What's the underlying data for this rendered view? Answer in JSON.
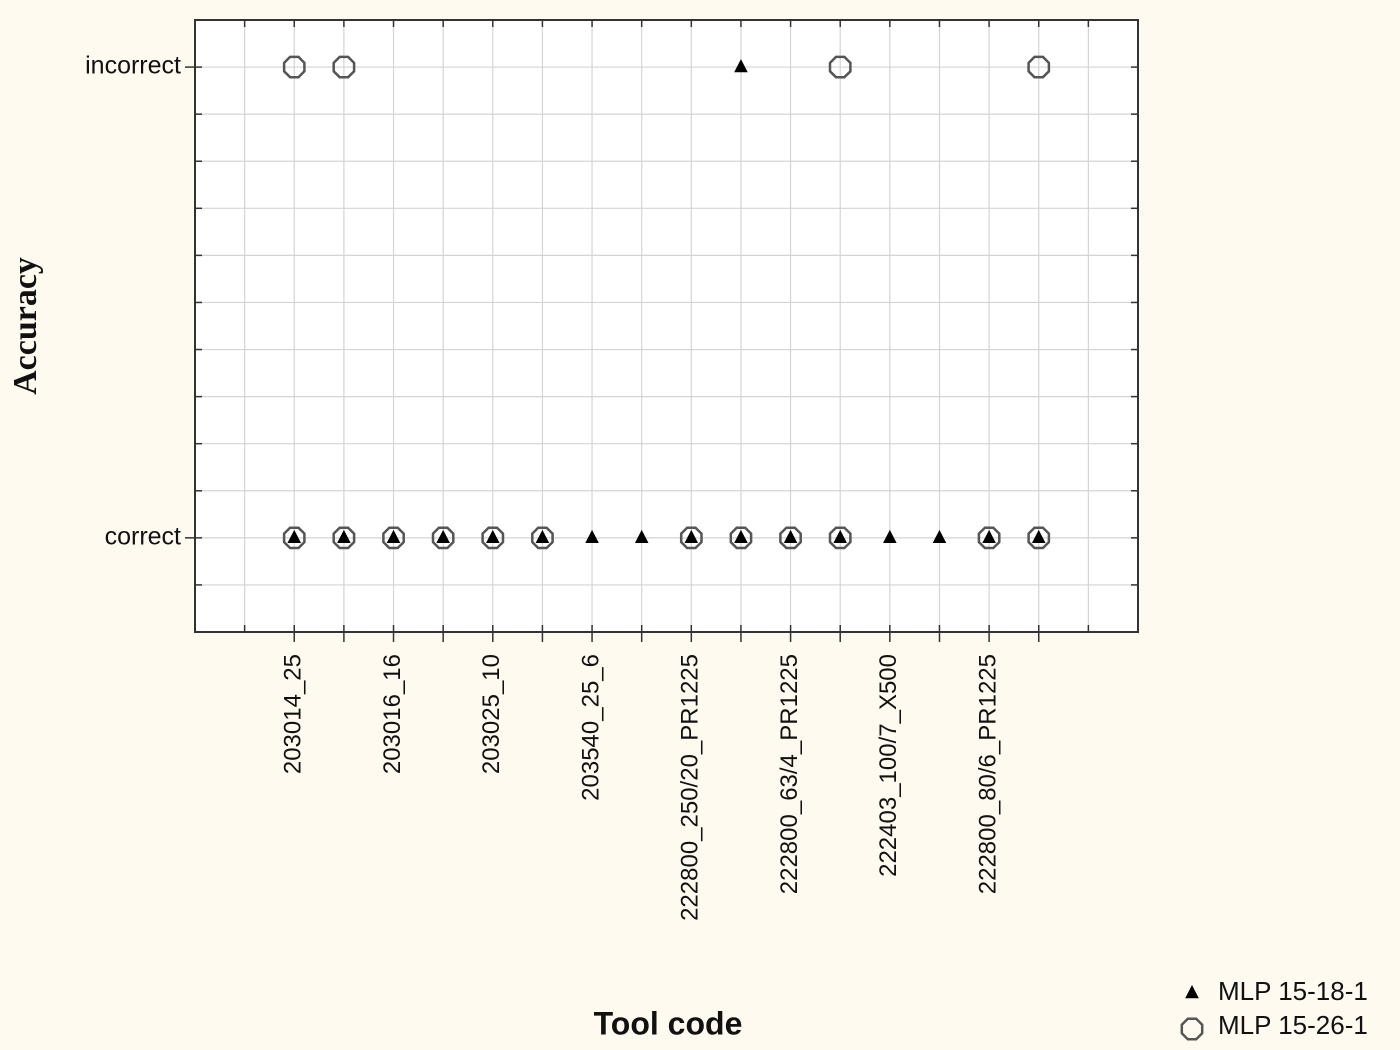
{
  "chart_data": {
    "type": "scatter",
    "x_title": "Tool code",
    "y_title": "Accuracy",
    "categories": [
      "203014_25",
      null,
      "203016_16",
      null,
      "203025_10",
      null,
      "203540_25_6",
      null,
      "222800_250/20_PR1225",
      null,
      "222800_63/4_PR1225",
      null,
      "222403_100/7_X500",
      null,
      "222800_80/6_PR1225",
      null
    ],
    "y_categories": [
      "correct",
      "incorrect"
    ],
    "series": [
      {
        "name": "MLP 15-18-1",
        "marker": "triangle",
        "color": "#000000",
        "values": [
          [
            "correct"
          ],
          [
            "correct"
          ],
          [
            "correct"
          ],
          [
            "correct"
          ],
          [
            "correct"
          ],
          [
            "correct"
          ],
          [
            "correct"
          ],
          [
            "correct"
          ],
          [
            "correct"
          ],
          [
            "correct",
            "incorrect"
          ],
          [
            "correct"
          ],
          [
            "correct"
          ],
          [
            "correct"
          ],
          [
            "correct"
          ],
          [
            "correct"
          ],
          [
            "correct"
          ]
        ]
      },
      {
        "name": "MLP 15-26-1",
        "marker": "octagon",
        "color": "#555555",
        "values": [
          [
            "correct",
            "incorrect"
          ],
          [
            "correct",
            "incorrect"
          ],
          [
            "correct"
          ],
          [
            "correct"
          ],
          [
            "correct"
          ],
          [
            "correct"
          ],
          [],
          [],
          [
            "correct"
          ],
          [
            "correct"
          ],
          [
            "correct"
          ],
          [
            "correct",
            "incorrect"
          ],
          [],
          [],
          [
            "correct"
          ],
          [
            "correct",
            "incorrect"
          ]
        ]
      }
    ],
    "grid": true,
    "legend": "bottom-right"
  }
}
